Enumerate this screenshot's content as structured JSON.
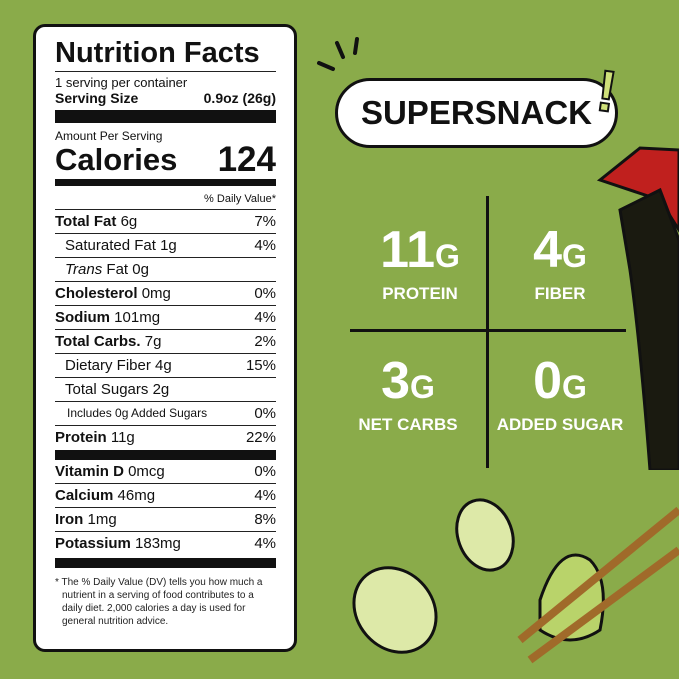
{
  "label": {
    "title": "Nutrition Facts",
    "servings": "1 serving per container",
    "serving_size_label": "Serving Size",
    "serving_size": "0.9oz (26g)",
    "amount_per_serving": "Amount Per Serving",
    "calories_label": "Calories",
    "calories": "124",
    "dv_header": "% Daily Value*",
    "rows": [
      {
        "name": "Total Fat",
        "amount": "6g",
        "dv": "7%"
      },
      {
        "name": "Saturated Fat",
        "amount": "1g",
        "dv": "4%"
      },
      {
        "name": "Trans",
        "name2": "Fat",
        "amount": "0g",
        "dv": ""
      },
      {
        "name": "Cholesterol",
        "amount": "0mg",
        "dv": "0%"
      },
      {
        "name": "Sodium",
        "amount": "101mg",
        "dv": "4%"
      },
      {
        "name": "Total Carbs.",
        "amount": "7g",
        "dv": "2%"
      },
      {
        "name": "Dietary Fiber",
        "amount": "4g",
        "dv": "15%"
      },
      {
        "name": "Total Sugars",
        "amount": "2g",
        "dv": ""
      },
      {
        "name": "Includes 0g Added Sugars",
        "amount": "",
        "dv": "0%"
      },
      {
        "name": "Protein",
        "amount": "11g",
        "dv": "22%"
      },
      {
        "name": "Vitamin D",
        "amount": "0mcg",
        "dv": "0%"
      },
      {
        "name": "Calcium",
        "amount": "46mg",
        "dv": "4%"
      },
      {
        "name": "Iron",
        "amount": "1mg",
        "dv": "8%"
      },
      {
        "name": "Potassium",
        "amount": "183mg",
        "dv": "4%"
      }
    ],
    "footnote": "* The % Daily Value (DV) tells you how much a nutrient in a serving of food contributes to a daily diet. 2,000 calories a day is used for general nutrition advice."
  },
  "brand": {
    "badge": "SUPERSNACK",
    "exclaim": "!"
  },
  "stats": [
    {
      "value": "11",
      "unit": "G",
      "label": "PROTEIN"
    },
    {
      "value": "4",
      "unit": "G",
      "label": "FIBER"
    },
    {
      "value": "3",
      "unit": "G",
      "label": "NET CARBS"
    },
    {
      "value": "0",
      "unit": "G",
      "label": "ADDED SUGAR"
    }
  ],
  "colors": {
    "background": "#8aab4a",
    "bottle_cap": "#c0201e",
    "accent": "#cfe07a"
  }
}
